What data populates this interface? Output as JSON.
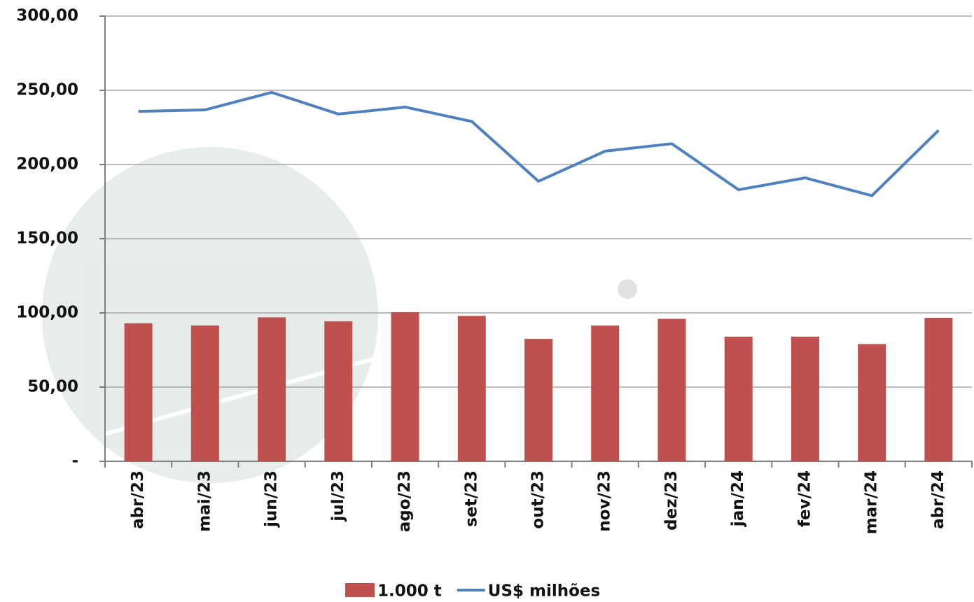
{
  "chart_data": {
    "type": "bar",
    "categories": [
      "abr/23",
      "mai/23",
      "jun/23",
      "jul/23",
      "ago/23",
      "set/23",
      "out/23",
      "nov/23",
      "dez/23",
      "jan/24",
      "fev/24",
      "mar/24",
      "abr/24"
    ],
    "series": [
      {
        "name": "1.000 t",
        "type": "bar",
        "color": "#c0504d",
        "values": [
          93,
          91.5,
          97,
          94.3,
          100.5,
          98,
          82.5,
          91.5,
          96,
          84,
          84,
          79,
          96.7
        ]
      },
      {
        "name": "US$ milhões",
        "type": "line",
        "color": "#4f81bd",
        "values": [
          235.8,
          236.8,
          248.6,
          234,
          238.7,
          229,
          188.7,
          209,
          214,
          183,
          191,
          179,
          223
        ]
      }
    ],
    "ylim": [
      0,
      300
    ],
    "yticks": [
      {
        "value": 0,
        "label": "-"
      },
      {
        "value": 50,
        "label": "50,00"
      },
      {
        "value": 100,
        "label": "100,00"
      },
      {
        "value": 150,
        "label": "150,00"
      },
      {
        "value": 200,
        "label": "200,00"
      },
      {
        "value": 250,
        "label": "250,00"
      },
      {
        "value": 300,
        "label": "300,00"
      }
    ],
    "grid": true
  }
}
